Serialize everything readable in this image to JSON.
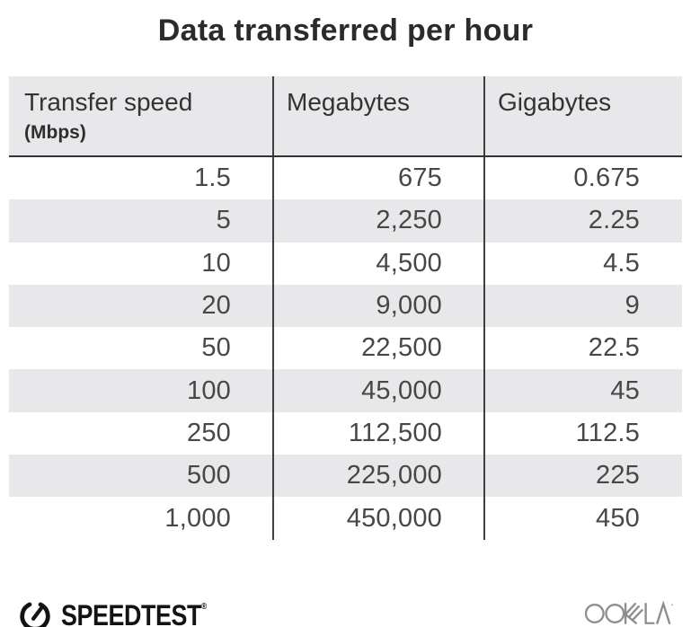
{
  "title": "Data transferred per hour",
  "table": {
    "columns": [
      {
        "label": "Transfer speed",
        "sublabel": "(Mbps)"
      },
      {
        "label": "Megabytes"
      },
      {
        "label": "Gigabytes"
      }
    ],
    "rows": [
      [
        "1.5",
        "675",
        "0.675"
      ],
      [
        "5",
        "2,250",
        "2.25"
      ],
      [
        "10",
        "4,500",
        "4.5"
      ],
      [
        "20",
        "9,000",
        "9"
      ],
      [
        "50",
        "22,500",
        "22.5"
      ],
      [
        "100",
        "45,000",
        "45"
      ],
      [
        "250",
        "112,500",
        "112.5"
      ],
      [
        "500",
        "225,000",
        "225"
      ],
      [
        "1,000",
        "450,000",
        "450"
      ]
    ]
  },
  "footer": {
    "speedtest_label": "SPEEDTEST",
    "speedtest_mark": "®",
    "ookla_label": "OOKLA"
  },
  "colors": {
    "header_bg": "#e8e8ea",
    "row_alt_bg": "#e8e8ea",
    "divider": "#3f3f3f",
    "title_text": "#2b2b2b",
    "body_text": "#474747",
    "speedtest_black": "#131313",
    "ookla_gray": "#8e8e90"
  },
  "chart_data": {
    "type": "table",
    "title": "Data transferred per hour",
    "columns": [
      "Transfer speed (Mbps)",
      "Megabytes",
      "Gigabytes"
    ],
    "rows": [
      [
        1.5,
        675,
        0.675
      ],
      [
        5,
        2250,
        2.25
      ],
      [
        10,
        4500,
        4.5
      ],
      [
        20,
        9000,
        9
      ],
      [
        50,
        22500,
        22.5
      ],
      [
        100,
        45000,
        45
      ],
      [
        250,
        112500,
        112.5
      ],
      [
        500,
        225000,
        225
      ],
      [
        1000,
        450000,
        450
      ]
    ]
  }
}
